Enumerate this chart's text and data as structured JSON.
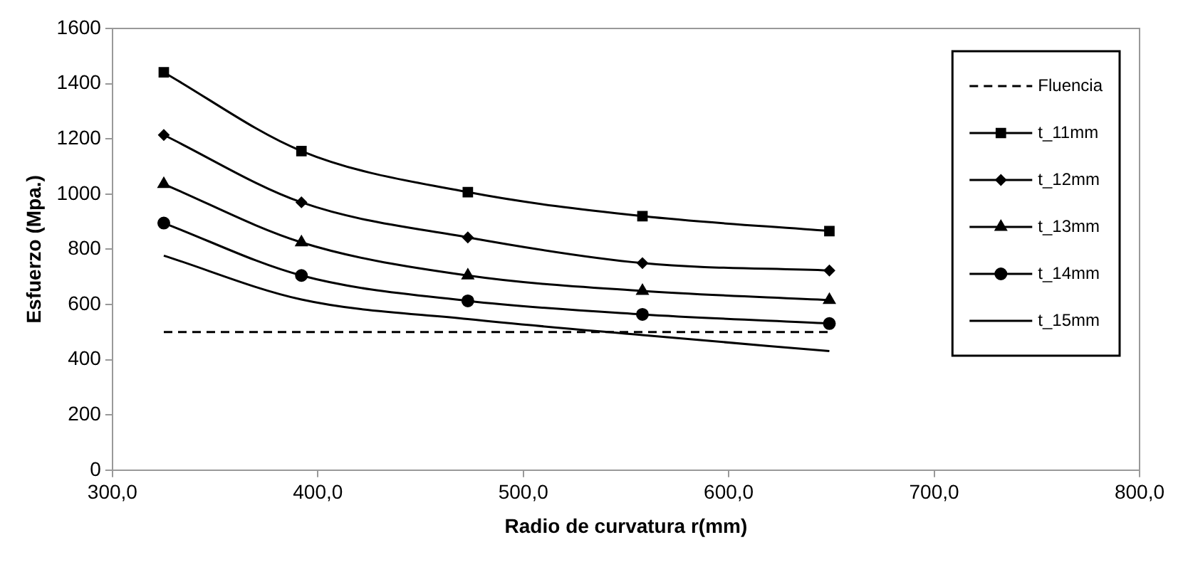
{
  "chart_data": {
    "type": "line",
    "xlabel": "Radio de curvatura r(mm)",
    "ylabel": "Esfuerzo (Mpa.)",
    "xlim": [
      300,
      800
    ],
    "ylim": [
      0,
      1600
    ],
    "xticks": [
      {
        "value": 300,
        "label": "300,0"
      },
      {
        "value": 400,
        "label": "400,0"
      },
      {
        "value": 500,
        "label": "500,0"
      },
      {
        "value": 600,
        "label": "600,0"
      },
      {
        "value": 700,
        "label": "700,0"
      },
      {
        "value": 800,
        "label": "800,0"
      }
    ],
    "yticks": [
      0,
      200,
      400,
      600,
      800,
      1000,
      1200,
      1400,
      1600
    ],
    "grid": false,
    "legend": "right",
    "x": [
      325,
      392,
      473,
      558,
      649
    ],
    "series": [
      {
        "name": "Fluencia",
        "color": "#000000",
        "values": [
          500,
          500,
          500,
          500,
          500
        ],
        "line_style": "dashed",
        "marker": "none"
      },
      {
        "name": "t_11mm",
        "color": "#000000",
        "values": [
          1441,
          1156,
          1007,
          920,
          866
        ],
        "marker": "square"
      },
      {
        "name": "t_12mm",
        "color": "#000000",
        "values": [
          1214,
          970,
          843,
          750,
          723
        ],
        "marker": "diamond"
      },
      {
        "name": "t_13mm",
        "color": "#000000",
        "values": [
          1036,
          825,
          705,
          649,
          616
        ],
        "marker": "triangle"
      },
      {
        "name": "t_14mm",
        "color": "#000000",
        "values": [
          895,
          705,
          613,
          564,
          531
        ],
        "marker": "circle"
      },
      {
        "name": "t_15mm",
        "color": "#000000",
        "values": [
          777,
          618,
          547,
          489,
          431
        ],
        "marker": "none"
      }
    ]
  }
}
